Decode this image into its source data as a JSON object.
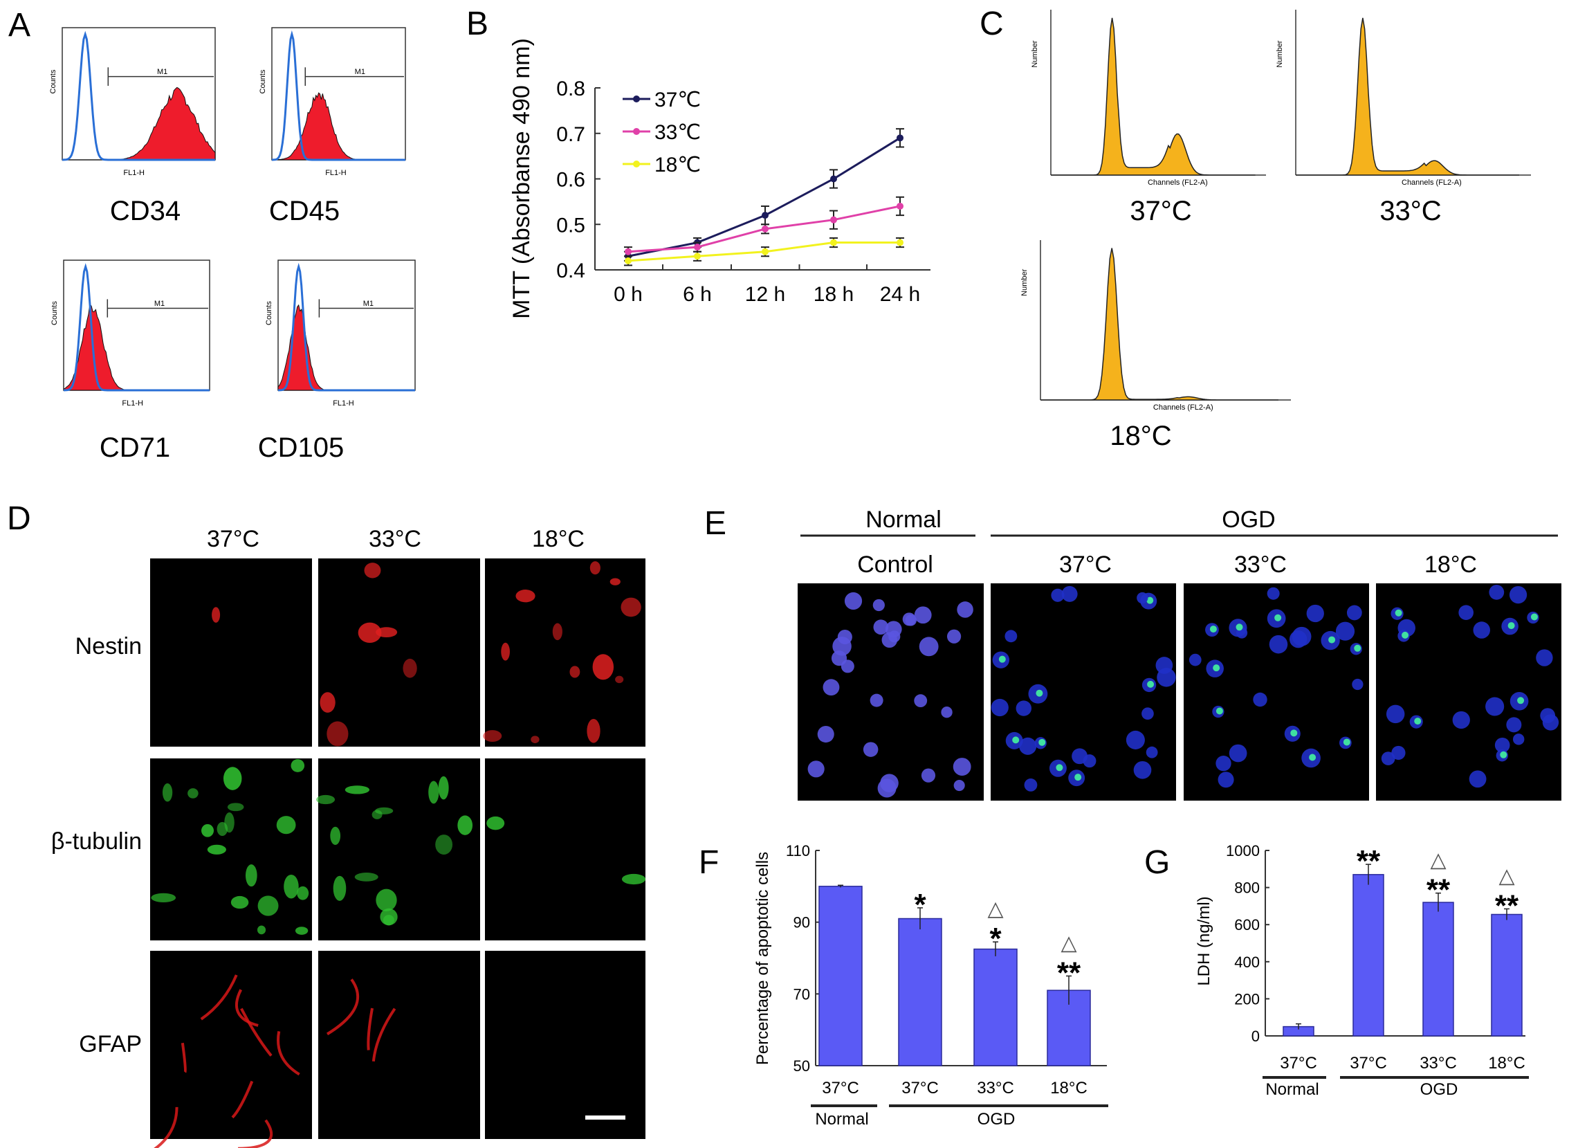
{
  "panels": {
    "A": {
      "letter": "A",
      "markers": [
        "CD34",
        "CD45",
        "CD71",
        "CD105"
      ],
      "gate_label": "M1",
      "x_axis_label": "FL1-H",
      "y_axis_label": "Counts"
    },
    "B": {
      "letter": "B"
    },
    "C": {
      "letter": "C",
      "conditions": [
        "37°C",
        "33°C",
        "18°C"
      ],
      "x_axis_label": "Channels (FL2-A)",
      "y_axis_label": "Number"
    },
    "D": {
      "letter": "D",
      "columns": [
        "37°C",
        "33°C",
        "18°C"
      ],
      "rows": [
        "Nestin",
        "β-tubulin",
        "GFAP"
      ]
    },
    "E": {
      "letter": "E",
      "group_normal": "Normal",
      "group_ogd": "OGD",
      "columns": [
        "Control",
        "37°C",
        "33°C",
        "18°C"
      ]
    },
    "F": {
      "letter": "F",
      "group_normal": "Normal",
      "group_ogd": "OGD"
    },
    "G": {
      "letter": "G",
      "group_normal": "Normal",
      "group_ogd": "OGD"
    }
  },
  "colors": {
    "s37": "#1c1c5c",
    "s33": "#e040a8",
    "s18": "#f2f21e",
    "bar": "#5a5af5",
    "hist_blue": "#2a6fd6",
    "hist_red": "#ee1c2c",
    "cell_orange": "#f5b21c"
  },
  "chart_data": [
    {
      "panel": "B",
      "type": "line",
      "categories": [
        "0 h",
        "6 h",
        "12 h",
        "18 h",
        "24 h"
      ],
      "ylabel": "MTT (Absorbanse 490 nm)",
      "xlabel": "",
      "ylim": [
        0.4,
        0.8
      ],
      "yticks": [
        "0.4",
        "0.5",
        "0.6",
        "0.7",
        "0.8"
      ],
      "legend": "top-left",
      "series": [
        {
          "name": "37℃",
          "values": [
            0.43,
            0.46,
            0.52,
            0.6,
            0.69
          ],
          "errors": [
            0.01,
            0.01,
            0.02,
            0.02,
            0.02
          ]
        },
        {
          "name": "33℃",
          "values": [
            0.44,
            0.45,
            0.49,
            0.51,
            0.54
          ],
          "errors": [
            0.01,
            0.01,
            0.01,
            0.02,
            0.02
          ]
        },
        {
          "name": "18℃",
          "values": [
            0.42,
            0.43,
            0.44,
            0.46,
            0.46
          ],
          "errors": [
            0.01,
            0.01,
            0.01,
            0.01,
            0.01
          ]
        }
      ]
    },
    {
      "panel": "F",
      "type": "bar",
      "categories": [
        "37°C",
        "37°C",
        "33°C",
        "18°C"
      ],
      "values": [
        100,
        91,
        82.5,
        71
      ],
      "errors": [
        0.3,
        3,
        2,
        4
      ],
      "annotations": [
        "",
        "*",
        "△\n*",
        "△\n**"
      ],
      "ylabel": "Percentage of apoptotic cells",
      "ylim": [
        50,
        110
      ],
      "yticks": [
        "50",
        "70",
        "90",
        "110"
      ]
    },
    {
      "panel": "G",
      "type": "bar",
      "categories": [
        "37°C",
        "37°C",
        "33°C",
        "18°C"
      ],
      "values": [
        50,
        870,
        720,
        655
      ],
      "errors": [
        15,
        55,
        50,
        30
      ],
      "annotations": [
        "",
        "**",
        "△\n**",
        "△\n**"
      ],
      "ylabel": "LDH (ng/ml)",
      "ylim": [
        0,
        1000
      ],
      "yticks": [
        "0",
        "200",
        "400",
        "600",
        "800",
        "1000"
      ]
    }
  ]
}
